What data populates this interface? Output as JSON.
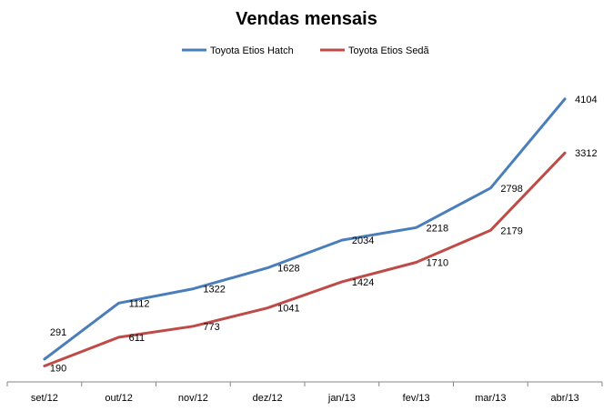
{
  "chart_data": {
    "type": "line",
    "title": "Vendas mensais",
    "categories": [
      "set/12",
      "out/12",
      "nov/12",
      "dez/12",
      "jan/13",
      "fev/13",
      "mar/13",
      "abr/13"
    ],
    "series": [
      {
        "name": "Toyota Etios Hatch",
        "color": "#4a7ebb",
        "values": [
          291,
          1112,
          1322,
          1628,
          2034,
          2218,
          2798,
          4104
        ]
      },
      {
        "name": "Toyota Etios Sedã",
        "color": "#be4b48",
        "values": [
          190,
          611,
          773,
          1041,
          1424,
          1710,
          2179,
          3312
        ]
      }
    ],
    "xlabel": "",
    "ylabel": "",
    "y_axis_visible": false,
    "grid": false,
    "legend_position": "top",
    "data_labels": true
  }
}
